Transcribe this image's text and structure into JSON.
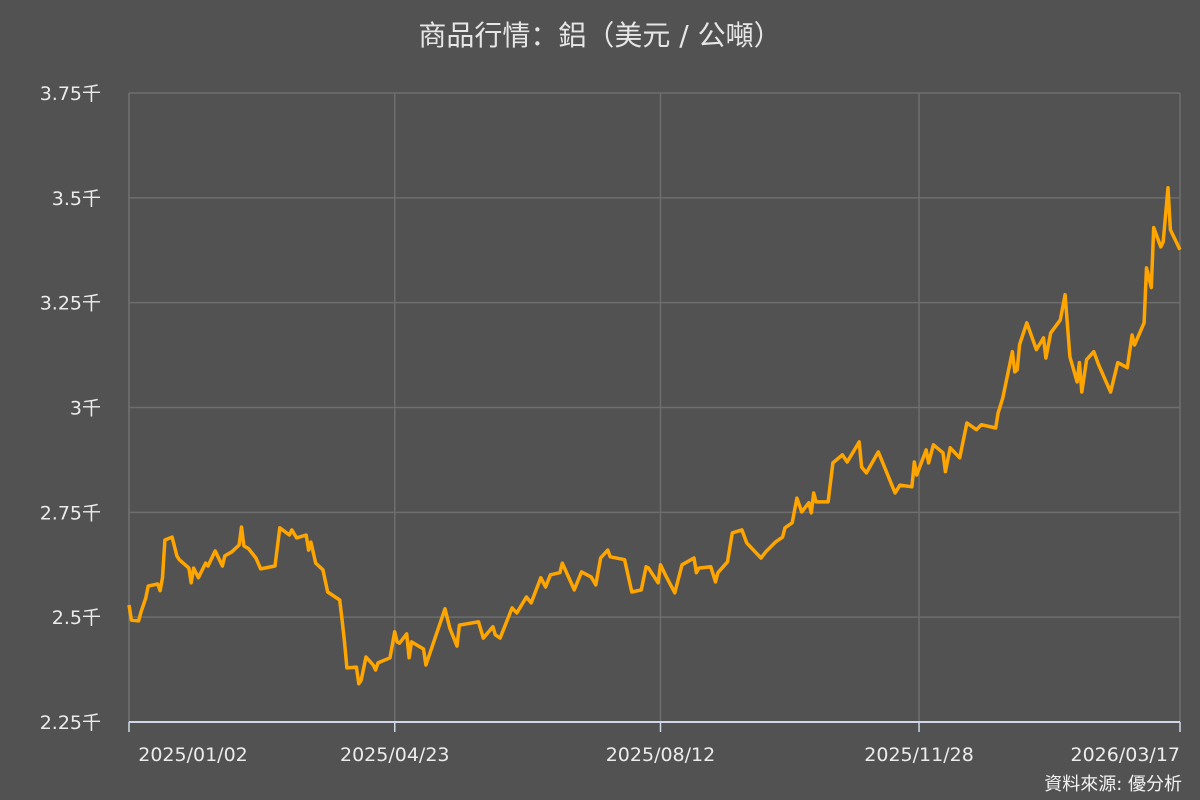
{
  "title": "商品行情：鋁（美元 / 公噸）",
  "source": "資料來源: 優分析",
  "chart_data": {
    "type": "line",
    "title": "商品行情：鋁（美元 / 公噸）",
    "xlabel": "",
    "ylabel": "",
    "ylim": [
      2250,
      3750
    ],
    "xlim": [
      "2025-01-02",
      "2026-03-17"
    ],
    "grid": true,
    "line_color": "#FFA500",
    "y_ticks": [
      2250,
      2500,
      2750,
      3000,
      3250,
      3500,
      3750
    ],
    "y_tick_labels": [
      "2.25千",
      "2.5千",
      "2.75千",
      "3千",
      "3.25千",
      "3.5千",
      "3.75千"
    ],
    "x_ticks": [
      "2025-01-02",
      "2025-04-23",
      "2025-08-12",
      "2025-11-28",
      "2026-03-17"
    ],
    "x_tick_labels": [
      "2025/01/02",
      "2025/04/23",
      "2025/08/12",
      "2025/11/28",
      "2026/03/17"
    ],
    "series": [
      {
        "points": [
          [
            "2025-01-02",
            2529
          ],
          [
            "2025-01-03",
            2493
          ],
          [
            "2025-01-06",
            2491
          ],
          [
            "2025-01-07",
            2512
          ],
          [
            "2025-01-09",
            2546
          ],
          [
            "2025-01-10",
            2574
          ],
          [
            "2025-01-14",
            2579
          ],
          [
            "2025-01-15",
            2563
          ],
          [
            "2025-01-16",
            2594
          ],
          [
            "2025-01-17",
            2684
          ],
          [
            "2025-01-20",
            2691
          ],
          [
            "2025-01-22",
            2646
          ],
          [
            "2025-01-23",
            2637
          ],
          [
            "2025-01-27",
            2617
          ],
          [
            "2025-01-28",
            2582
          ],
          [
            "2025-01-29",
            2617
          ],
          [
            "2025-01-31",
            2594
          ],
          [
            "2025-02-03",
            2629
          ],
          [
            "2025-02-04",
            2622
          ],
          [
            "2025-02-07",
            2658
          ],
          [
            "2025-02-10",
            2622
          ],
          [
            "2025-02-11",
            2646
          ],
          [
            "2025-02-14",
            2656
          ],
          [
            "2025-02-17",
            2672
          ],
          [
            "2025-02-18",
            2715
          ],
          [
            "2025-02-19",
            2670
          ],
          [
            "2025-02-21",
            2663
          ],
          [
            "2025-02-24",
            2641
          ],
          [
            "2025-02-26",
            2615
          ],
          [
            "2025-03-04",
            2622
          ],
          [
            "2025-03-06",
            2713
          ],
          [
            "2025-03-10",
            2696
          ],
          [
            "2025-03-11",
            2708
          ],
          [
            "2025-03-13",
            2689
          ],
          [
            "2025-03-17",
            2696
          ],
          [
            "2025-03-18",
            2660
          ],
          [
            "2025-03-19",
            2679
          ],
          [
            "2025-03-21",
            2629
          ],
          [
            "2025-03-24",
            2613
          ],
          [
            "2025-03-26",
            2560
          ],
          [
            "2025-03-31",
            2541
          ],
          [
            "2025-04-01",
            2493
          ],
          [
            "2025-04-02",
            2441
          ],
          [
            "2025-04-03",
            2379
          ],
          [
            "2025-04-07",
            2381
          ],
          [
            "2025-04-08",
            2341
          ],
          [
            "2025-04-09",
            2350
          ],
          [
            "2025-04-11",
            2405
          ],
          [
            "2025-04-14",
            2386
          ],
          [
            "2025-04-15",
            2374
          ],
          [
            "2025-04-16",
            2391
          ],
          [
            "2025-04-21",
            2403
          ],
          [
            "2025-04-23",
            2465
          ],
          [
            "2025-04-24",
            2441
          ],
          [
            "2025-04-25",
            2438
          ],
          [
            "2025-04-28",
            2460
          ],
          [
            "2025-04-29",
            2403
          ],
          [
            "2025-04-30",
            2441
          ],
          [
            "2025-05-05",
            2424
          ],
          [
            "2025-05-06",
            2386
          ],
          [
            "2025-05-14",
            2520
          ],
          [
            "2025-05-16",
            2474
          ],
          [
            "2025-05-19",
            2431
          ],
          [
            "2025-05-20",
            2481
          ],
          [
            "2025-05-28",
            2489
          ],
          [
            "2025-05-30",
            2450
          ],
          [
            "2025-06-03",
            2477
          ],
          [
            "2025-06-04",
            2458
          ],
          [
            "2025-06-06",
            2450
          ],
          [
            "2025-06-11",
            2522
          ],
          [
            "2025-06-13",
            2510
          ],
          [
            "2025-06-17",
            2548
          ],
          [
            "2025-06-19",
            2534
          ],
          [
            "2025-06-23",
            2594
          ],
          [
            "2025-06-25",
            2572
          ],
          [
            "2025-06-27",
            2601
          ],
          [
            "2025-07-01",
            2606
          ],
          [
            "2025-07-02",
            2629
          ],
          [
            "2025-07-07",
            2565
          ],
          [
            "2025-07-10",
            2608
          ],
          [
            "2025-07-14",
            2596
          ],
          [
            "2025-07-16",
            2577
          ],
          [
            "2025-07-18",
            2641
          ],
          [
            "2025-07-21",
            2660
          ],
          [
            "2025-07-22",
            2644
          ],
          [
            "2025-07-28",
            2637
          ],
          [
            "2025-07-31",
            2560
          ],
          [
            "2025-08-04",
            2565
          ],
          [
            "2025-08-06",
            2620
          ],
          [
            "2025-08-07",
            2617
          ],
          [
            "2025-08-11",
            2582
          ],
          [
            "2025-08-12",
            2625
          ],
          [
            "2025-08-14",
            2601
          ],
          [
            "2025-08-18",
            2558
          ],
          [
            "2025-08-21",
            2625
          ],
          [
            "2025-08-26",
            2641
          ],
          [
            "2025-08-27",
            2606
          ],
          [
            "2025-08-28",
            2617
          ],
          [
            "2025-09-02",
            2620
          ],
          [
            "2025-09-04",
            2584
          ],
          [
            "2025-09-05",
            2606
          ],
          [
            "2025-09-09",
            2632
          ],
          [
            "2025-09-11",
            2701
          ],
          [
            "2025-09-15",
            2708
          ],
          [
            "2025-09-17",
            2677
          ],
          [
            "2025-09-23",
            2641
          ],
          [
            "2025-09-25",
            2656
          ],
          [
            "2025-09-29",
            2679
          ],
          [
            "2025-10-02",
            2691
          ],
          [
            "2025-10-03",
            2713
          ],
          [
            "2025-10-06",
            2725
          ],
          [
            "2025-10-08",
            2784
          ],
          [
            "2025-10-10",
            2751
          ],
          [
            "2025-10-13",
            2773
          ],
          [
            "2025-10-14",
            2749
          ],
          [
            "2025-10-15",
            2796
          ],
          [
            "2025-10-16",
            2775
          ],
          [
            "2025-10-21",
            2775
          ],
          [
            "2025-10-23",
            2868
          ],
          [
            "2025-10-27",
            2887
          ],
          [
            "2025-10-29",
            2870
          ],
          [
            "2025-11-03",
            2918
          ],
          [
            "2025-11-04",
            2858
          ],
          [
            "2025-11-06",
            2844
          ],
          [
            "2025-11-11",
            2894
          ],
          [
            "2025-11-18",
            2796
          ],
          [
            "2025-11-20",
            2815
          ],
          [
            "2025-11-25",
            2811
          ],
          [
            "2025-11-26",
            2870
          ],
          [
            "2025-11-27",
            2839
          ],
          [
            "2025-12-01",
            2899
          ],
          [
            "2025-12-02",
            2868
          ],
          [
            "2025-12-04",
            2911
          ],
          [
            "2025-12-08",
            2892
          ],
          [
            "2025-12-09",
            2847
          ],
          [
            "2025-12-11",
            2904
          ],
          [
            "2025-12-15",
            2880
          ],
          [
            "2025-12-18",
            2963
          ],
          [
            "2025-12-22",
            2947
          ],
          [
            "2025-12-24",
            2959
          ],
          [
            "2025-12-30",
            2951
          ],
          [
            "2025-12-31",
            2987
          ],
          [
            "2026-01-02",
            3023
          ],
          [
            "2026-01-06",
            3133
          ],
          [
            "2026-01-07",
            3085
          ],
          [
            "2026-01-08",
            3090
          ],
          [
            "2026-01-09",
            3150
          ],
          [
            "2026-01-12",
            3202
          ],
          [
            "2026-01-16",
            3138
          ],
          [
            "2026-01-19",
            3166
          ],
          [
            "2026-01-20",
            3118
          ],
          [
            "2026-01-22",
            3178
          ],
          [
            "2026-01-26",
            3209
          ],
          [
            "2026-01-28",
            3269
          ],
          [
            "2026-01-30",
            3121
          ],
          [
            "2026-02-02",
            3061
          ],
          [
            "2026-02-03",
            3107
          ],
          [
            "2026-02-04",
            3037
          ],
          [
            "2026-02-06",
            3114
          ],
          [
            "2026-02-09",
            3133
          ],
          [
            "2026-02-11",
            3102
          ],
          [
            "2026-02-16",
            3037
          ],
          [
            "2026-02-19",
            3107
          ],
          [
            "2026-02-23",
            3095
          ],
          [
            "2026-02-25",
            3173
          ],
          [
            "2026-02-26",
            3149
          ],
          [
            "2026-03-02",
            3202
          ],
          [
            "2026-03-03",
            3333
          ],
          [
            "2026-03-05",
            3286
          ],
          [
            "2026-03-06",
            3429
          ],
          [
            "2026-03-09",
            3383
          ],
          [
            "2026-03-10",
            3395
          ],
          [
            "2026-03-12",
            3524
          ],
          [
            "2026-03-13",
            3424
          ],
          [
            "2026-03-17",
            3376
          ]
        ]
      }
    ]
  }
}
